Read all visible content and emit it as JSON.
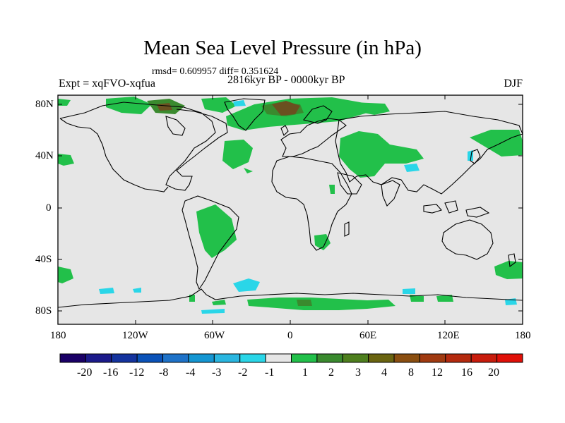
{
  "title": "Mean Sea Level Pressure (in hPa)",
  "stats": "rmsd= 0.609957 diff= 0.351624",
  "experiment": "Expt = xqFVO-xqfua",
  "period": "2816kyr BP - 0000kyr BP",
  "season": "DJF",
  "y_axis_labels": [
    "80N",
    "40N",
    "0",
    "40S",
    "80S"
  ],
  "x_axis_labels": [
    "180",
    "120W",
    "60W",
    "0",
    "60E",
    "120E",
    "180"
  ],
  "colorbar": {
    "colors": [
      "#1a0066",
      "#1b1a8a",
      "#14339e",
      "#0a52b8",
      "#1e72c8",
      "#1596d2",
      "#2ab6e0",
      "#2ad6e8",
      "#e6e6e6",
      "#22c04a",
      "#3a8a2e",
      "#4e7f1e",
      "#6a6410",
      "#8a4e10",
      "#a03a10",
      "#b42a0e",
      "#c81c0c",
      "#e01008"
    ],
    "labels": [
      "-20",
      "-16",
      "-12",
      "-8",
      "-4",
      "-3",
      "-2",
      "-1",
      "1",
      "2",
      "3",
      "4",
      "8",
      "12",
      "16",
      "20"
    ]
  },
  "map_colors": {
    "background": "#e6e6e6",
    "positive_1_2": "#22c04a",
    "positive_2_3": "#3a8a2e",
    "positive_4_8": "#6a5020",
    "negative_1_2": "#2ad6e8",
    "coast": "#000000"
  }
}
